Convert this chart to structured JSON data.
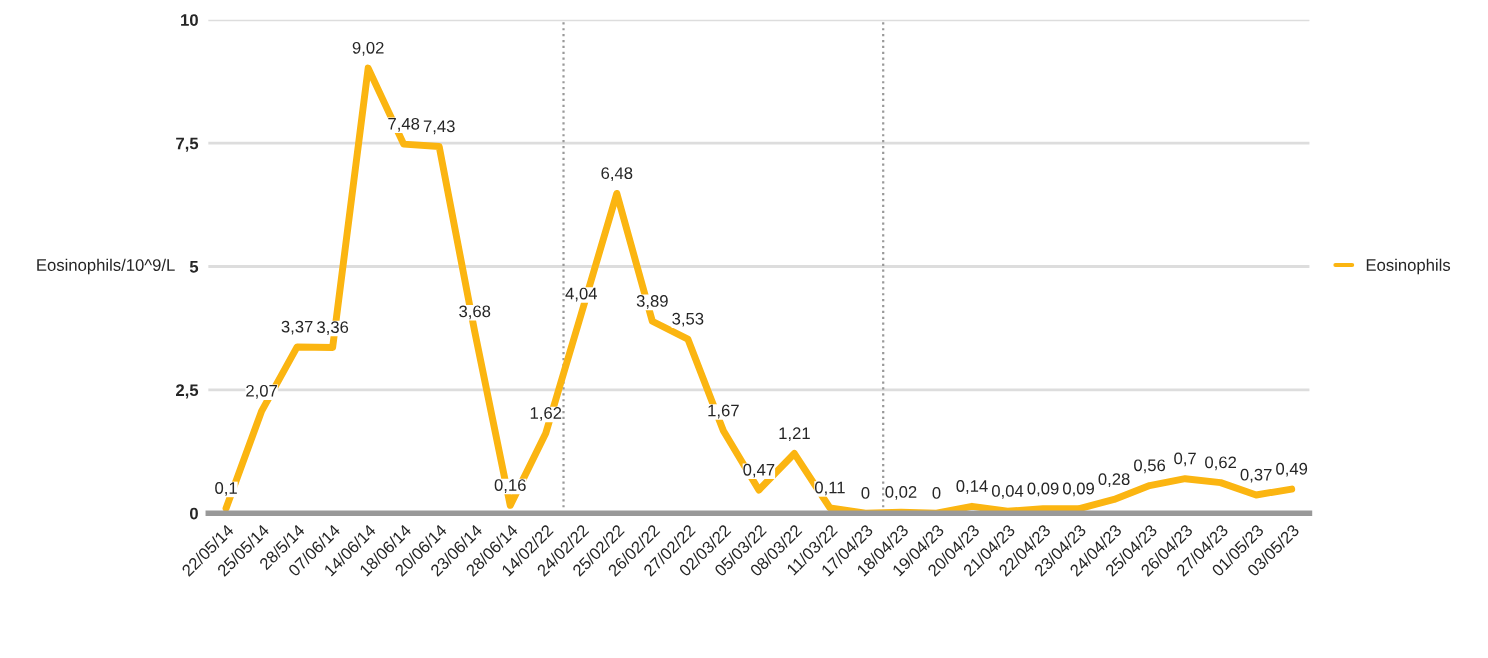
{
  "chart_data": {
    "type": "line",
    "ylabel": "Eosinophils/10^9/L",
    "categories": [
      "22/05/14",
      "25/05/14",
      "28/5/14",
      "07/06/14",
      "14/06/14",
      "18/06/14",
      "20/06/14",
      "23/06/14",
      "28/06/14",
      "14/02/22",
      "24/02/22",
      "25/02/22",
      "26/02/22",
      "27/02/22",
      "02/03/22",
      "05/03/22",
      "08/03/22",
      "11/03/22",
      "17/04/23",
      "18/04/23",
      "19/04/23",
      "20/04/23",
      "21/04/23",
      "22/04/23",
      "23/04/23",
      "24/04/23",
      "25/04/23",
      "26/04/23",
      "27/04/23",
      "01/05/23",
      "03/05/23"
    ],
    "series": [
      {
        "name": "Eosinophils",
        "color": "#fbb511",
        "values": [
          0.1,
          2.07,
          3.37,
          3.36,
          9.02,
          7.48,
          7.43,
          3.68,
          0.16,
          1.62,
          4.04,
          6.48,
          3.89,
          3.53,
          1.67,
          0.47,
          1.21,
          0.11,
          0,
          0.02,
          0,
          0.14,
          0.04,
          0.09,
          0.09,
          0.28,
          0.56,
          0.7,
          0.62,
          0.37,
          0.49
        ],
        "value_labels": [
          "0,1",
          "2,07",
          "3,37",
          "3,36",
          "9,02",
          "7,48",
          "7,43",
          "3,68",
          "0,16",
          "1,62",
          "4,04",
          "6,48",
          "3,89",
          "3,53",
          "1,67",
          "0,47",
          "1,21",
          "0,11",
          "0",
          "0,02",
          "0",
          "0,14",
          "0,04",
          "0,09",
          "0,09",
          "0,28",
          "0,56",
          "0,7",
          "0,62",
          "0,37",
          "0,49"
        ]
      }
    ],
    "ylim": [
      0,
      10
    ],
    "yticks": [
      0,
      {
        "value": 2.5,
        "label": "2,5"
      },
      5,
      {
        "value": 7.5,
        "label": "7,5"
      },
      10
    ],
    "grid": "y",
    "legend": "right",
    "marker": "none",
    "line_style": "solid"
  }
}
